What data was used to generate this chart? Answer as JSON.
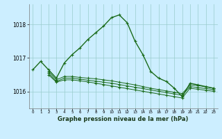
{
  "background_color": "#cceeff",
  "grid_color": "#99cccc",
  "line_color": "#1a6b1a",
  "title": "Graphe pression niveau de la mer (hPa)",
  "xlim": [
    -0.5,
    23.5
  ],
  "ylim": [
    1015.5,
    1018.6
  ],
  "yticks": [
    1016,
    1017,
    1018
  ],
  "xticks": [
    0,
    1,
    2,
    3,
    4,
    5,
    6,
    7,
    8,
    9,
    10,
    11,
    12,
    13,
    14,
    15,
    16,
    17,
    18,
    19,
    20,
    21,
    22,
    23
  ],
  "series": [
    {
      "x": [
        0,
        1,
        2,
        3,
        4,
        5,
        6,
        7,
        8,
        9,
        10,
        11,
        12,
        13,
        14,
        15,
        16,
        17,
        18,
        19,
        20,
        21,
        22,
        23
      ],
      "y": [
        1016.65,
        1016.9,
        1016.65,
        1016.4,
        1016.85,
        1017.1,
        1017.3,
        1017.55,
        1017.75,
        1017.95,
        1018.2,
        1018.28,
        1018.05,
        1017.5,
        1017.1,
        1016.6,
        1016.4,
        1016.3,
        1016.1,
        1015.85,
        1016.25,
        1016.2,
        1016.15,
        1016.1
      ]
    },
    {
      "x": [
        2,
        3,
        4,
        5,
        6,
        7,
        8,
        9,
        10,
        11,
        12,
        13,
        14,
        15,
        16,
        17,
        18,
        19,
        20,
        21,
        22,
        23
      ],
      "y": [
        1016.6,
        1016.35,
        1016.45,
        1016.45,
        1016.42,
        1016.4,
        1016.38,
        1016.35,
        1016.32,
        1016.28,
        1016.24,
        1016.2,
        1016.15,
        1016.1,
        1016.06,
        1016.02,
        1015.98,
        1015.94,
        1016.2,
        1016.18,
        1016.14,
        1016.1
      ]
    },
    {
      "x": [
        2,
        3,
        4,
        5,
        6,
        7,
        8,
        9,
        10,
        11,
        12,
        13,
        14,
        15,
        16,
        17,
        18,
        19,
        20,
        21,
        22,
        23
      ],
      "y": [
        1016.55,
        1016.3,
        1016.4,
        1016.4,
        1016.37,
        1016.34,
        1016.31,
        1016.28,
        1016.25,
        1016.21,
        1016.17,
        1016.13,
        1016.09,
        1016.05,
        1016.01,
        1015.97,
        1015.93,
        1015.89,
        1016.15,
        1016.12,
        1016.09,
        1016.06
      ]
    },
    {
      "x": [
        2,
        3,
        4,
        5,
        6,
        7,
        8,
        9,
        10,
        11,
        12,
        13,
        14,
        15,
        16,
        17,
        18,
        19,
        20,
        21,
        22,
        23
      ],
      "y": [
        1016.5,
        1016.28,
        1016.35,
        1016.35,
        1016.32,
        1016.29,
        1016.25,
        1016.21,
        1016.17,
        1016.13,
        1016.09,
        1016.05,
        1016.01,
        1015.97,
        1015.93,
        1015.89,
        1015.85,
        1015.81,
        1016.1,
        1016.07,
        1016.04,
        1016.01
      ]
    }
  ]
}
